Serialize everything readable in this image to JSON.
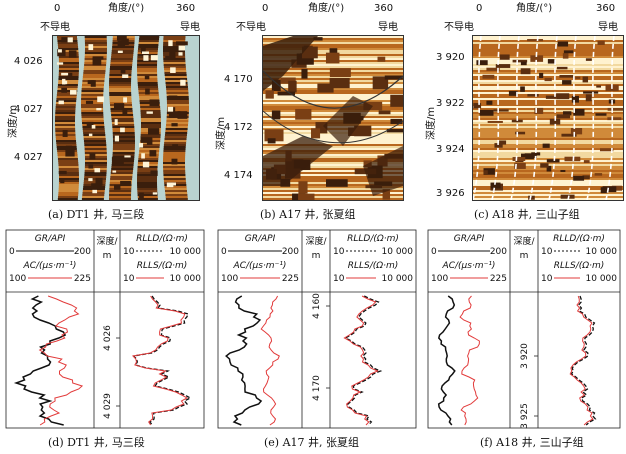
{
  "panels": [
    {
      "caption": "(a) DT1 井, 马三段",
      "angle_label": "角度/(°)",
      "angle_min": "0",
      "angle_max": "360",
      "left_label": "不导电",
      "right_label": "导电",
      "depth_label": "深度/m",
      "depth_ticks": [
        "4 026",
        "4 027",
        "4 027"
      ]
    },
    {
      "caption": "(b) A17 井, 张夏组",
      "angle_label": "角度/(°)",
      "angle_min": "0",
      "angle_max": "360",
      "left_label": "不导电",
      "right_label": "导电",
      "depth_label": "深度/m",
      "depth_ticks": [
        "4 170",
        "4 172",
        "4 174"
      ]
    },
    {
      "caption": "(c) A18 井, 三山子组",
      "angle_label": "角度/(°)",
      "angle_min": "0",
      "angle_max": "360",
      "left_label": "不导电",
      "right_label": "导电",
      "depth_label": "深度/m",
      "depth_ticks": [
        "3 920",
        "3 922",
        "3 924",
        "3 926"
      ]
    }
  ],
  "logs": [
    {
      "caption": "(d) DT1 井, 马三段",
      "gr_label": "GR/API",
      "gr_min": "0",
      "gr_max": "200",
      "ac_label": "AC/(μs·m⁻¹)",
      "ac_min": "100",
      "ac_max": "225",
      "depth_label": "深度/",
      "depth_unit": "m",
      "rlld_label": "RLLD/(Ω·m)",
      "rlld_min": "10",
      "rlld_max": "10 000",
      "rlls_label": "RLLS/(Ω·m)",
      "rlls_min": "10",
      "rlls_max": "10 000",
      "depth_ticks": [
        "4 026",
        "4 029"
      ]
    },
    {
      "caption": "(e) A17 井, 张夏组",
      "gr_label": "GR/API",
      "gr_min": "0",
      "gr_max": "200",
      "ac_label": "AC/(μs·m⁻¹)",
      "ac_min": "100",
      "ac_max": "225",
      "depth_label": "深度/",
      "depth_unit": "m",
      "rlld_label": "RLLD/(Ω·m)",
      "rlld_min": "10",
      "rlld_max": "10 000",
      "rlls_label": "RLLS/(Ω·m)",
      "rlls_min": "10",
      "rlls_max": "10 000",
      "depth_ticks": [
        "4 160",
        "4 170"
      ]
    },
    {
      "caption": "(f) A18 井, 三山子组",
      "gr_label": "GR/API",
      "gr_min": "0",
      "gr_max": "200",
      "ac_label": "AC/(μs·m⁻¹)",
      "ac_min": "100",
      "ac_max": "225",
      "depth_label": "深度/",
      "depth_unit": "m",
      "rlld_label": "RLLD/(Ω·m)",
      "rlld_min": "10",
      "rlld_max": "10 000",
      "rlls_label": "RLLS/(Ω·m)",
      "rlls_min": "10",
      "rlls_max": "10 000",
      "depth_ticks": [
        "3 920",
        "3 925"
      ]
    }
  ],
  "colors": {
    "gr": "#111111",
    "ac": "#e23b3b",
    "rlld": "#111111",
    "rlls": "#e23b3b",
    "image_dark": "#3a1e0c",
    "image_mid": "#b8671e",
    "image_light": "#f2d9a0",
    "image_gap": "#b9d3d0"
  }
}
